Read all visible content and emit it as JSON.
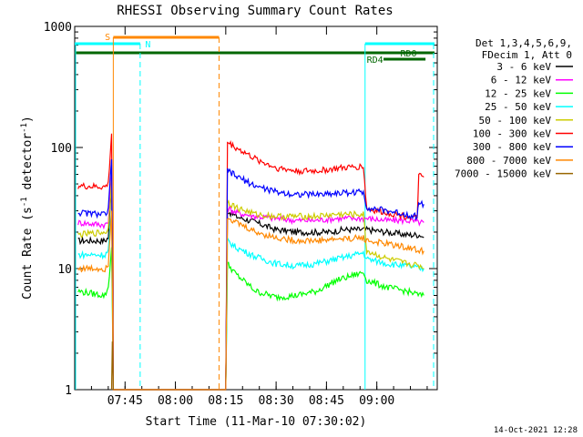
{
  "chart_data": {
    "type": "line",
    "title": "RHESSI Observing Summary Count Rates",
    "xlabel": "Start Time (11-Mar-10 07:30:02)",
    "ylabel_base": "Count Rate (s",
    "ylabel_sup1": "-1",
    "ylabel_mid": " detector",
    "ylabel_sup2": "-1",
    "ylabel_end": ")",
    "yscale": "log",
    "ylim": [
      1,
      1000
    ],
    "y_ticks": [
      {
        "value": 1,
        "label": "1"
      },
      {
        "value": 10,
        "label": "10"
      },
      {
        "value": 100,
        "label": "100"
      },
      {
        "value": 1000,
        "label": "1000"
      }
    ],
    "xlim_minutes": [
      0,
      108
    ],
    "x_ticks": [
      {
        "minute": 15,
        "label": "07:45"
      },
      {
        "minute": 30,
        "label": "08:00"
      },
      {
        "minute": 45,
        "label": "08:15"
      },
      {
        "minute": 60,
        "label": "08:30"
      },
      {
        "minute": 75,
        "label": "08:45"
      },
      {
        "minute": 90,
        "label": "09:00"
      }
    ],
    "legend": {
      "position": "right",
      "header": [
        "Det 1,3,4,5,6,9,",
        "FDecim 1, Att 0"
      ]
    },
    "series": [
      {
        "name": "3 - 6 keV",
        "color": "#000000",
        "points": [
          [
            1,
            17
          ],
          [
            9,
            17
          ],
          [
            10,
            18
          ],
          [
            11,
            50
          ],
          [
            11.5,
            1
          ],
          [
            45,
            1
          ],
          [
            45.5,
            30
          ],
          [
            48,
            27
          ],
          [
            54,
            24
          ],
          [
            60,
            21
          ],
          [
            66,
            20
          ],
          [
            72,
            20
          ],
          [
            76,
            20
          ],
          [
            80,
            21
          ],
          [
            87,
            21
          ],
          [
            93,
            20
          ],
          [
            99,
            19
          ],
          [
            103,
            19
          ],
          [
            104,
            18
          ]
        ]
      },
      {
        "name": "6 - 12 keV",
        "color": "#ff00ff",
        "points": [
          [
            1,
            24
          ],
          [
            9,
            23
          ],
          [
            10,
            24
          ],
          [
            11,
            60
          ],
          [
            11.5,
            1
          ],
          [
            45,
            1
          ],
          [
            45.5,
            32
          ],
          [
            48,
            29
          ],
          [
            54,
            27
          ],
          [
            60,
            26
          ],
          [
            66,
            25
          ],
          [
            72,
            25
          ],
          [
            78,
            26
          ],
          [
            87,
            26
          ],
          [
            93,
            25
          ],
          [
            99,
            25
          ],
          [
            103,
            24
          ],
          [
            104,
            24
          ]
        ]
      },
      {
        "name": "12 - 25 keV",
        "color": "#00ff00",
        "points": [
          [
            1,
            6.5
          ],
          [
            9,
            6
          ],
          [
            10,
            7
          ],
          [
            11,
            15
          ],
          [
            11.5,
            1
          ],
          [
            45,
            1
          ],
          [
            45.5,
            11
          ],
          [
            48,
            9
          ],
          [
            54,
            6.5
          ],
          [
            60,
            5.8
          ],
          [
            66,
            6
          ],
          [
            72,
            6.5
          ],
          [
            78,
            8
          ],
          [
            86,
            9.3
          ],
          [
            87,
            8
          ],
          [
            93,
            7
          ],
          [
            99,
            6.5
          ],
          [
            103,
            6
          ],
          [
            104,
            6
          ]
        ]
      },
      {
        "name": "25 - 50 keV",
        "color": "#00ffff",
        "points": [
          [
            1,
            13
          ],
          [
            9,
            13
          ],
          [
            10,
            14
          ],
          [
            11,
            30
          ],
          [
            11.5,
            1
          ],
          [
            45,
            1
          ],
          [
            45.5,
            17
          ],
          [
            48,
            15
          ],
          [
            54,
            12.5
          ],
          [
            60,
            11
          ],
          [
            66,
            10.5
          ],
          [
            72,
            11
          ],
          [
            78,
            12
          ],
          [
            86,
            13.5
          ],
          [
            87,
            12
          ],
          [
            93,
            11
          ],
          [
            99,
            10.5
          ],
          [
            103,
            10
          ],
          [
            104,
            10
          ]
        ]
      },
      {
        "name": "50 - 100 keV",
        "color": "#cccc00",
        "points": [
          [
            1,
            19
          ],
          [
            9,
            20
          ],
          [
            10,
            21
          ],
          [
            11,
            55
          ],
          [
            11.5,
            1
          ],
          [
            45,
            1
          ],
          [
            45.5,
            36
          ],
          [
            48,
            32
          ],
          [
            54,
            28
          ],
          [
            60,
            27
          ],
          [
            66,
            27
          ],
          [
            72,
            27
          ],
          [
            78,
            28
          ],
          [
            86,
            28
          ],
          [
            87,
            14
          ],
          [
            93,
            12
          ],
          [
            99,
            11
          ],
          [
            103,
            10.5
          ],
          [
            104,
            10
          ]
        ]
      },
      {
        "name": "100 - 300 keV",
        "color": "#ff0000",
        "points": [
          [
            1,
            48
          ],
          [
            9,
            47
          ],
          [
            10,
            50
          ],
          [
            11,
            130
          ],
          [
            11.5,
            1
          ],
          [
            45,
            1
          ],
          [
            45.5,
            110
          ],
          [
            48,
            100
          ],
          [
            54,
            80
          ],
          [
            60,
            68
          ],
          [
            66,
            64
          ],
          [
            72,
            64
          ],
          [
            78,
            67
          ],
          [
            86,
            70
          ],
          [
            87,
            31
          ],
          [
            93,
            29
          ],
          [
            99,
            27
          ],
          [
            102,
            26
          ],
          [
            102.5,
            58
          ],
          [
            104,
            57
          ]
        ]
      },
      {
        "name": "300 - 800 keV",
        "color": "#0000ff",
        "points": [
          [
            1,
            29
          ],
          [
            9,
            28
          ],
          [
            10,
            30
          ],
          [
            11,
            80
          ],
          [
            11.5,
            1
          ],
          [
            45,
            1
          ],
          [
            45.5,
            65
          ],
          [
            48,
            58
          ],
          [
            54,
            48
          ],
          [
            60,
            43
          ],
          [
            66,
            41
          ],
          [
            72,
            41
          ],
          [
            78,
            42
          ],
          [
            86,
            43
          ],
          [
            87,
            32
          ],
          [
            93,
            30
          ],
          [
            99,
            28
          ],
          [
            102,
            27
          ],
          [
            102.5,
            35
          ],
          [
            104,
            34
          ]
        ]
      },
      {
        "name": "800 - 7000 keV",
        "color": "#ff8800",
        "points": [
          [
            1,
            10
          ],
          [
            9,
            10
          ],
          [
            10,
            11
          ],
          [
            11,
            30
          ],
          [
            11.5,
            1
          ],
          [
            45,
            1
          ],
          [
            45.5,
            27
          ],
          [
            48,
            24
          ],
          [
            54,
            20
          ],
          [
            60,
            18
          ],
          [
            66,
            17
          ],
          [
            72,
            17
          ],
          [
            78,
            17.5
          ],
          [
            86,
            18
          ],
          [
            87,
            17
          ],
          [
            93,
            16
          ],
          [
            99,
            15
          ],
          [
            103,
            14
          ],
          [
            104,
            14
          ]
        ]
      },
      {
        "name": "7000 - 15000 keV",
        "color": "#996600",
        "points": [
          [
            11,
            1
          ],
          [
            11.2,
            2.5
          ],
          [
            11.5,
            1
          ]
        ]
      }
    ],
    "annotations": [
      {
        "text": "S",
        "color": "#ff8800"
      },
      {
        "text": "N",
        "color": "#00ffff"
      },
      {
        "text": "RD0",
        "color": "#006600"
      },
      {
        "text": "RD4",
        "color": "#006600"
      }
    ]
  },
  "footer": {
    "timestamp": "14-Oct-2021 12:28"
  }
}
